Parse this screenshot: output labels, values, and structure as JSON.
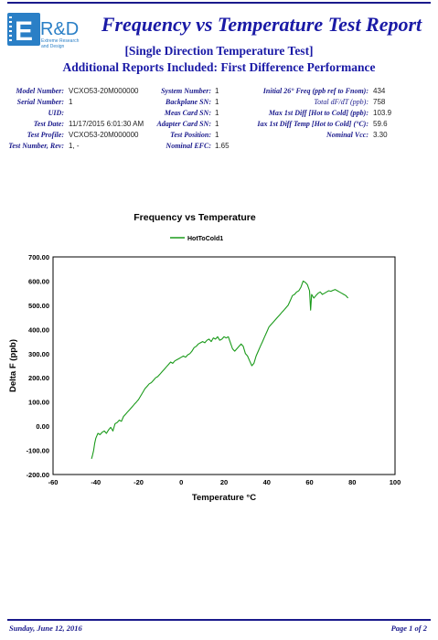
{
  "header": {
    "logo": {
      "text": "E R&D",
      "tagline": "Extreme Research and Design",
      "color": "#2a7fc6"
    },
    "title": "Frequency vs Temperature Test Report",
    "subtitle": "[Single Direction Temperature Test]",
    "subtitle2": "Additional Reports Included:  First Difference Performance"
  },
  "info": {
    "col1": [
      {
        "label": "Model Number:",
        "value": "VCXO53-20M000000"
      },
      {
        "label": "Serial Number:",
        "value": "1"
      },
      {
        "label": "UID:",
        "value": ""
      },
      {
        "label": "Test Date:",
        "value": "11/17/2015 6:01:30 AM"
      },
      {
        "label": "Test Profile:",
        "value": "VCXO53-20M000000"
      },
      {
        "label": "Test Number, Rev:",
        "value": "1,  -"
      }
    ],
    "col2": [
      {
        "label": "System Number:",
        "value": "1"
      },
      {
        "label": "Backplane SN:",
        "value": "1"
      },
      {
        "label": "Meas Card SN:",
        "value": "1"
      },
      {
        "label": "Adapter Card SN:",
        "value": "1"
      },
      {
        "label": "Test Position:",
        "value": "1"
      },
      {
        "label": "Nominal EFC:",
        "value": "1.65"
      }
    ],
    "col3": [
      {
        "label": "Initial 26° Freq (ppb ref to Fnom):",
        "value": "434"
      },
      {
        "label": "Total dF/dT (ppb):",
        "value": "758"
      },
      {
        "label": "Max 1st Diff [Hot to Cold] (ppb):",
        "value": "103.9"
      },
      {
        "label": "Iax 1st Diff Temp [Hot to Cold] (°C):",
        "value": "59.6"
      },
      {
        "label": "Nominal Vcc:",
        "value": "3.30"
      }
    ]
  },
  "chart_data": {
    "type": "line",
    "title": "Frequency vs Temperature",
    "xlabel": "Temperature °C",
    "ylabel": "Delta F (ppb)",
    "xlim": [
      -60,
      100
    ],
    "ylim": [
      -200,
      700
    ],
    "xticks": [
      "-60",
      "-40",
      "-20",
      "0",
      "20",
      "40",
      "60",
      "80",
      "100"
    ],
    "yticks": [
      "-200.00",
      "-100.00",
      "0.00",
      "100.00",
      "200.00",
      "300.00",
      "400.00",
      "500.00",
      "600.00",
      "700.00"
    ],
    "grid": true,
    "legend": "top",
    "series": [
      {
        "name": "HotToCold1",
        "color": "#1a9a1a",
        "x": [
          -42,
          -41.5,
          -41,
          -40.5,
          -40,
          -39.5,
          -39,
          -38,
          -37,
          -36,
          -35,
          -34,
          -33,
          -32,
          -31,
          -30,
          -29,
          -28,
          -27,
          -26,
          -25,
          -24,
          -23,
          -22,
          -21,
          -20,
          -19,
          -18,
          -17,
          -16,
          -15,
          -14,
          -13,
          -12,
          -11,
          -10,
          -9,
          -8,
          -7,
          -6,
          -5,
          -4,
          -3,
          -2,
          -1,
          0,
          1,
          2,
          3,
          4,
          5,
          6,
          7,
          8,
          9,
          10,
          11,
          12,
          13,
          14,
          15,
          16,
          17,
          18,
          19,
          20,
          21,
          22,
          23,
          24,
          25,
          26,
          27,
          28,
          29,
          30,
          31,
          32,
          33,
          34,
          35,
          36,
          37,
          38,
          39,
          40,
          41,
          42,
          43,
          44,
          45,
          46,
          47,
          48,
          49,
          50,
          51,
          52,
          53,
          54,
          55,
          56,
          57,
          58,
          59,
          60,
          60.5,
          61,
          62,
          63,
          64,
          65,
          66,
          67,
          68,
          69,
          70,
          71,
          72,
          73,
          74,
          75,
          76,
          77,
          78
        ],
        "y": [
          -135,
          -120,
          -100,
          -70,
          -50,
          -40,
          -30,
          -35,
          -25,
          -20,
          -30,
          -15,
          -5,
          -20,
          10,
          15,
          25,
          20,
          40,
          50,
          60,
          70,
          80,
          90,
          100,
          110,
          125,
          140,
          155,
          165,
          175,
          180,
          190,
          200,
          205,
          215,
          225,
          235,
          245,
          255,
          265,
          260,
          270,
          275,
          280,
          285,
          290,
          285,
          295,
          300,
          310,
          325,
          330,
          340,
          345,
          350,
          345,
          355,
          360,
          350,
          365,
          360,
          370,
          355,
          360,
          370,
          365,
          370,
          345,
          320,
          310,
          320,
          330,
          340,
          330,
          300,
          290,
          270,
          250,
          260,
          290,
          310,
          330,
          350,
          370,
          390,
          410,
          420,
          430,
          440,
          450,
          460,
          470,
          480,
          490,
          500,
          520,
          540,
          545,
          555,
          560,
          575,
          600,
          595,
          585,
          560,
          480,
          545,
          530,
          540,
          550,
          555,
          545,
          550,
          555,
          560,
          558,
          562,
          565,
          560,
          555,
          550,
          545,
          540,
          530
        ]
      }
    ]
  },
  "footer": {
    "date": "Sunday, June 12, 2016",
    "page": "Page 1 of 2"
  }
}
